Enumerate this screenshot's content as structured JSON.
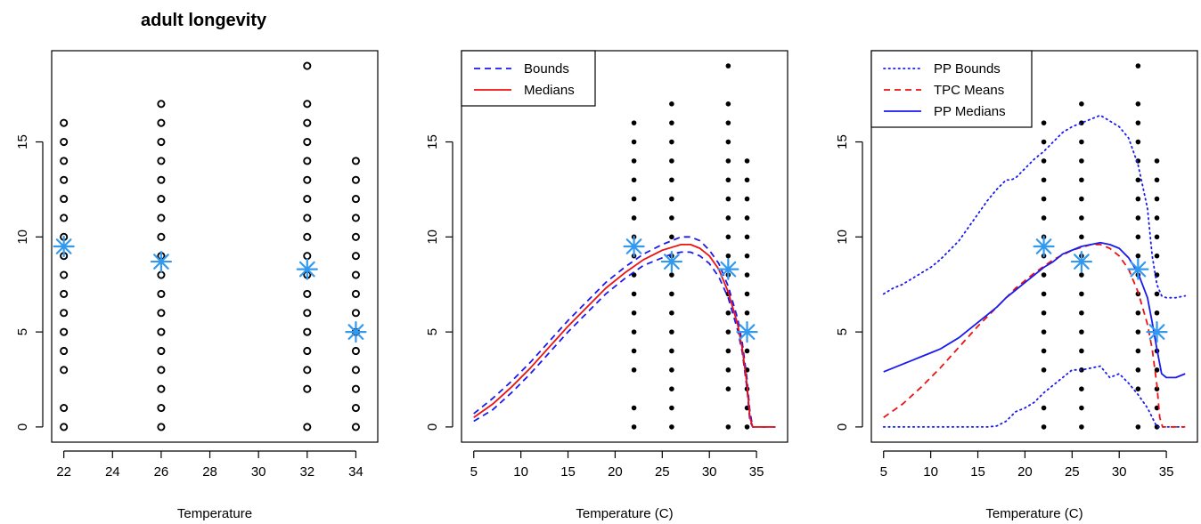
{
  "figure_title": "adult longevity",
  "colors": {
    "points": "#000000",
    "star": "#3399ee",
    "blue": "#1a1aee",
    "red": "#ee1111"
  },
  "chart_data": [
    {
      "type": "scatter",
      "title": "adult longevity",
      "xlabel": "Temperature",
      "ylabel": "",
      "xlim": [
        21.5,
        34.9
      ],
      "ylim": [
        -0.8,
        19.8
      ],
      "xticks": [
        22,
        24,
        26,
        28,
        30,
        32,
        34
      ],
      "yticks": [
        0,
        5,
        10,
        15
      ],
      "marker": "open-circle",
      "observations": [
        {
          "x": 22,
          "y": [
            0,
            1,
            3,
            4,
            5,
            6,
            7,
            8,
            9,
            10,
            11,
            12,
            13,
            14,
            15,
            16
          ]
        },
        {
          "x": 26,
          "y": [
            0,
            1,
            2,
            3,
            4,
            5,
            6,
            7,
            8,
            9,
            10,
            11,
            12,
            13,
            14,
            15,
            16,
            17
          ]
        },
        {
          "x": 32,
          "y": [
            0,
            2,
            3,
            4,
            5,
            6,
            7,
            8,
            9,
            10,
            11,
            12,
            13,
            14,
            15,
            16,
            17,
            19
          ]
        },
        {
          "x": 34,
          "y": [
            0,
            1,
            2,
            3,
            4,
            5,
            6,
            7,
            8,
            9,
            10,
            11,
            12,
            13,
            14
          ]
        }
      ],
      "means": {
        "x": [
          22,
          26,
          32,
          34
        ],
        "y": [
          9.5,
          8.7,
          8.3,
          5.0
        ]
      },
      "legend": null
    },
    {
      "type": "line",
      "title": "",
      "xlabel": "Temperature (C)",
      "ylabel": "",
      "xlim": [
        3.7,
        38.3
      ],
      "ylim": [
        -0.8,
        19.8
      ],
      "xticks": [
        5,
        10,
        15,
        20,
        25,
        30,
        35
      ],
      "yticks": [
        0,
        5,
        10,
        15
      ],
      "marker": "filled-dot",
      "observations": [
        {
          "x": 22,
          "y": [
            0,
            1,
            3,
            4,
            5,
            6,
            7,
            8,
            9,
            10,
            11,
            12,
            13,
            14,
            15,
            16
          ]
        },
        {
          "x": 26,
          "y": [
            0,
            1,
            2,
            3,
            4,
            5,
            6,
            7,
            8,
            9,
            10,
            11,
            12,
            13,
            14,
            15,
            16,
            17
          ]
        },
        {
          "x": 32,
          "y": [
            0,
            2,
            3,
            4,
            5,
            6,
            7,
            8,
            9,
            10,
            11,
            12,
            13,
            14,
            15,
            16,
            17,
            19
          ]
        },
        {
          "x": 34,
          "y": [
            0,
            1,
            2,
            3,
            4,
            5,
            6,
            7,
            8,
            9,
            10,
            11,
            12,
            13,
            14
          ]
        }
      ],
      "means": {
        "x": [
          22,
          26,
          32,
          34
        ],
        "y": [
          9.5,
          8.7,
          8.3,
          5.0
        ]
      },
      "x": [
        5,
        7,
        9,
        11,
        13,
        15,
        17,
        19,
        21,
        23,
        25,
        26,
        27,
        28,
        29,
        30,
        31,
        32,
        33,
        33.5,
        34,
        34.3,
        34.6,
        35,
        36,
        37
      ],
      "series": [
        {
          "name": "Bounds",
          "style": "dashed",
          "color": "#1a1aee",
          "values": [
            0.7,
            1.5,
            2.4,
            3.4,
            4.5,
            5.6,
            6.6,
            7.6,
            8.4,
            9.1,
            9.6,
            9.8,
            10.0,
            10.0,
            9.8,
            9.3,
            8.6,
            7.4,
            5.7,
            4.4,
            2.5,
            0.8,
            0,
            0,
            0,
            0
          ]
        },
        {
          "name": "",
          "style": "dashed",
          "color": "#1a1aee",
          "values": [
            0.3,
            0.9,
            1.8,
            2.8,
            3.9,
            5.0,
            6.0,
            7.0,
            7.8,
            8.5,
            8.9,
            9.1,
            9.2,
            9.2,
            9.0,
            8.6,
            7.9,
            6.8,
            5.1,
            3.9,
            2.0,
            0.3,
            0,
            0,
            0,
            0
          ]
        },
        {
          "name": "Medians",
          "style": "solid",
          "color": "#ee1111",
          "values": [
            0.5,
            1.2,
            2.1,
            3.1,
            4.2,
            5.3,
            6.3,
            7.3,
            8.1,
            8.8,
            9.3,
            9.45,
            9.6,
            9.6,
            9.4,
            9.0,
            8.3,
            7.1,
            5.4,
            4.1,
            2.2,
            0.5,
            0,
            0,
            0,
            0
          ]
        }
      ],
      "legend": {
        "position": "top-left",
        "entries": [
          "Bounds",
          "Medians"
        ]
      }
    },
    {
      "type": "line",
      "title": "",
      "xlabel": "Temperature (C)",
      "ylabel": "",
      "xlim": [
        3.7,
        38.3
      ],
      "ylim": [
        -0.8,
        19.8
      ],
      "xticks": [
        5,
        10,
        15,
        20,
        25,
        30,
        35
      ],
      "yticks": [
        0,
        5,
        10,
        15
      ],
      "marker": "filled-dot",
      "observations": [
        {
          "x": 22,
          "y": [
            0,
            1,
            3,
            4,
            5,
            6,
            7,
            8,
            9,
            10,
            11,
            12,
            13,
            14,
            15,
            16
          ]
        },
        {
          "x": 26,
          "y": [
            0,
            1,
            2,
            3,
            4,
            5,
            6,
            7,
            8,
            9,
            10,
            11,
            12,
            13,
            14,
            15,
            16,
            17
          ]
        },
        {
          "x": 32,
          "y": [
            0,
            2,
            3,
            4,
            5,
            6,
            7,
            8,
            9,
            10,
            11,
            12,
            13,
            14,
            15,
            16,
            17,
            19
          ]
        },
        {
          "x": 34,
          "y": [
            0,
            1,
            2,
            3,
            4,
            5,
            6,
            7,
            8,
            9,
            10,
            11,
            12,
            13,
            14
          ]
        }
      ],
      "means": {
        "x": [
          22,
          26,
          32,
          34
        ],
        "y": [
          9.5,
          8.7,
          8.3,
          5.0
        ]
      },
      "series": [
        {
          "name": "PP Bounds",
          "style": "dotted",
          "color": "#1a1aee",
          "x": [
            5,
            6,
            7,
            8,
            9,
            10,
            11,
            12,
            13,
            14,
            15,
            16,
            17,
            18,
            18.5,
            19,
            20,
            21,
            22,
            23,
            24,
            25,
            26,
            27,
            28,
            29,
            30,
            31,
            32,
            33,
            33.5,
            34,
            34.5,
            35,
            36,
            37
          ],
          "values": [
            7.0,
            7.3,
            7.5,
            7.8,
            8.1,
            8.4,
            8.8,
            9.3,
            9.8,
            10.5,
            11.2,
            11.9,
            12.5,
            13.0,
            13.0,
            13.1,
            13.6,
            14.1,
            14.5,
            15.0,
            15.5,
            15.8,
            16.0,
            16.2,
            16.4,
            16.1,
            15.8,
            15.2,
            13.8,
            11.5,
            9.0,
            7.5,
            6.9,
            6.8,
            6.8,
            6.9
          ]
        },
        {
          "name": "",
          "style": "dotted",
          "color": "#1a1aee",
          "x": [
            5,
            7,
            9,
            11,
            13,
            15,
            16,
            17,
            18,
            19,
            20,
            21,
            22,
            23,
            24,
            25,
            26,
            27,
            28,
            29,
            30,
            31,
            32,
            33,
            33.5,
            34,
            34.5,
            35,
            36,
            37
          ],
          "values": [
            0,
            0,
            0,
            0,
            0,
            0,
            0,
            0.05,
            0.3,
            0.8,
            1.0,
            1.3,
            1.8,
            2.2,
            2.6,
            3.0,
            3.0,
            3.1,
            3.2,
            2.6,
            2.8,
            2.3,
            1.7,
            1.0,
            0.5,
            0,
            0,
            0,
            0,
            0
          ]
        },
        {
          "name": "TPC Means",
          "style": "dashed",
          "color": "#ee1111",
          "x": [
            5,
            7,
            9,
            11,
            13,
            15,
            17,
            19,
            21,
            23,
            25,
            26,
            27,
            28,
            29,
            30,
            31,
            32,
            33,
            33.5,
            34,
            34.3,
            34.6,
            35,
            36,
            37
          ],
          "values": [
            0.5,
            1.2,
            2.1,
            3.1,
            4.2,
            5.3,
            6.3,
            7.3,
            8.1,
            8.8,
            9.3,
            9.45,
            9.6,
            9.6,
            9.4,
            9.0,
            8.3,
            7.1,
            5.4,
            4.1,
            2.2,
            0.5,
            0,
            0,
            0,
            0
          ]
        },
        {
          "name": "PP Medians",
          "style": "solid",
          "color": "#1a1aee",
          "x": [
            5,
            6,
            7,
            8,
            9,
            10,
            11,
            12,
            13,
            14,
            15,
            16,
            17,
            18,
            19,
            20,
            21,
            22,
            23,
            24,
            25,
            26,
            27,
            28,
            29,
            30,
            31,
            32,
            33,
            33.5,
            34,
            34.5,
            35,
            36,
            37
          ],
          "values": [
            2.9,
            3.1,
            3.3,
            3.5,
            3.7,
            3.9,
            4.1,
            4.4,
            4.7,
            5.1,
            5.5,
            5.9,
            6.3,
            6.8,
            7.2,
            7.6,
            8.0,
            8.4,
            8.7,
            9.1,
            9.3,
            9.5,
            9.6,
            9.7,
            9.6,
            9.4,
            8.9,
            8.1,
            6.8,
            5.5,
            4.1,
            2.8,
            2.6,
            2.6,
            2.8
          ]
        }
      ],
      "legend": {
        "position": "top-left",
        "entries": [
          "PP Bounds",
          "TPC Means",
          "PP Medians"
        ]
      }
    }
  ]
}
